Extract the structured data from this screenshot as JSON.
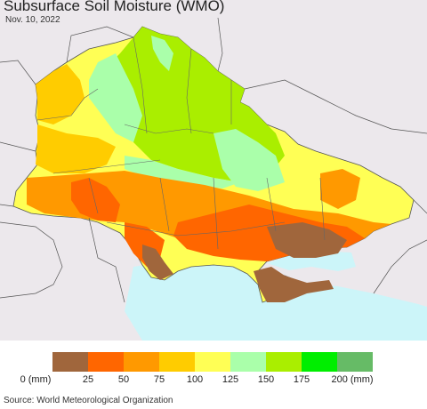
{
  "title": "Subsurface Soil Moisture (WMO)",
  "date": "Nov. 10, 2022",
  "legend": {
    "colors": [
      "#a0663c",
      "#ff6600",
      "#ff9900",
      "#ffcc00",
      "#ffff55",
      "#aaffaa",
      "#aaee00",
      "#00ee00",
      "#66bb66"
    ],
    "tick_labels": [
      "0 (mm)",
      "25",
      "50",
      "75",
      "100",
      "125",
      "150",
      "175",
      "200 (mm)"
    ]
  },
  "source": "Source: World Meteorological Organization",
  "map_colors": {
    "land_outside": "#ece8ec",
    "sea": "#ccf5f9",
    "border": "#555555"
  }
}
